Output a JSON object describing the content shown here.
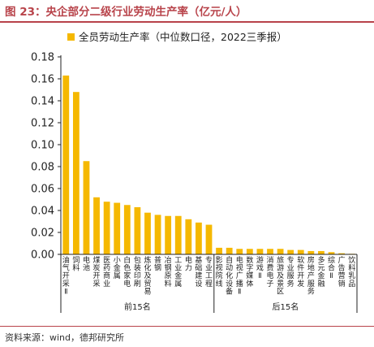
{
  "header": {
    "title": "图 23：央企部分二级行业劳动生产率（亿元/人）"
  },
  "footer": {
    "source": "资料来源：wind，德邦研究所"
  },
  "colors": {
    "accent": "#b8434a",
    "bar": "#f5b800"
  },
  "chart_data": {
    "type": "bar",
    "legend": "全员劳动生产率（中位数口径，2022三季报）",
    "legend_position": "top",
    "ylim": [
      0,
      0.18
    ],
    "yticks": [
      "0.00",
      "0.02",
      "0.04",
      "0.06",
      "0.08",
      "0.10",
      "0.12",
      "0.14",
      "0.16",
      "0.18"
    ],
    "grid": false,
    "categories": [
      "油气开采Ⅱ",
      "饲料",
      "电池",
      "煤炭开采",
      "医药商业",
      "小金属",
      "白色家电",
      "包装印刷",
      "炼化及贸易",
      "普钢",
      "冶钢原料",
      "工业金属",
      "电力",
      "基础建设",
      "专业工程",
      "影视院线",
      "自动化设备",
      "电视广播Ⅱ",
      "数字媒体",
      "游戏Ⅱ",
      "消费电子",
      "旅游及景区",
      "专业服务",
      "软件开发",
      "房地产服务",
      "多元金融",
      "综合Ⅱ",
      "广告营销",
      "饮料乳品"
    ],
    "values": [
      0.163,
      0.148,
      0.085,
      0.052,
      0.048,
      0.047,
      0.045,
      0.043,
      0.038,
      0.036,
      0.035,
      0.035,
      0.032,
      0.029,
      0.027,
      0.006,
      0.006,
      0.005,
      0.005,
      0.005,
      0.005,
      0.005,
      0.004,
      0.004,
      0.003,
      0.003,
      0.002,
      0.001,
      0.0005
    ],
    "groups": [
      {
        "label": "前15名",
        "start": 0,
        "end": 14
      },
      {
        "label": "后15名",
        "start": 15,
        "end": 28
      }
    ]
  }
}
